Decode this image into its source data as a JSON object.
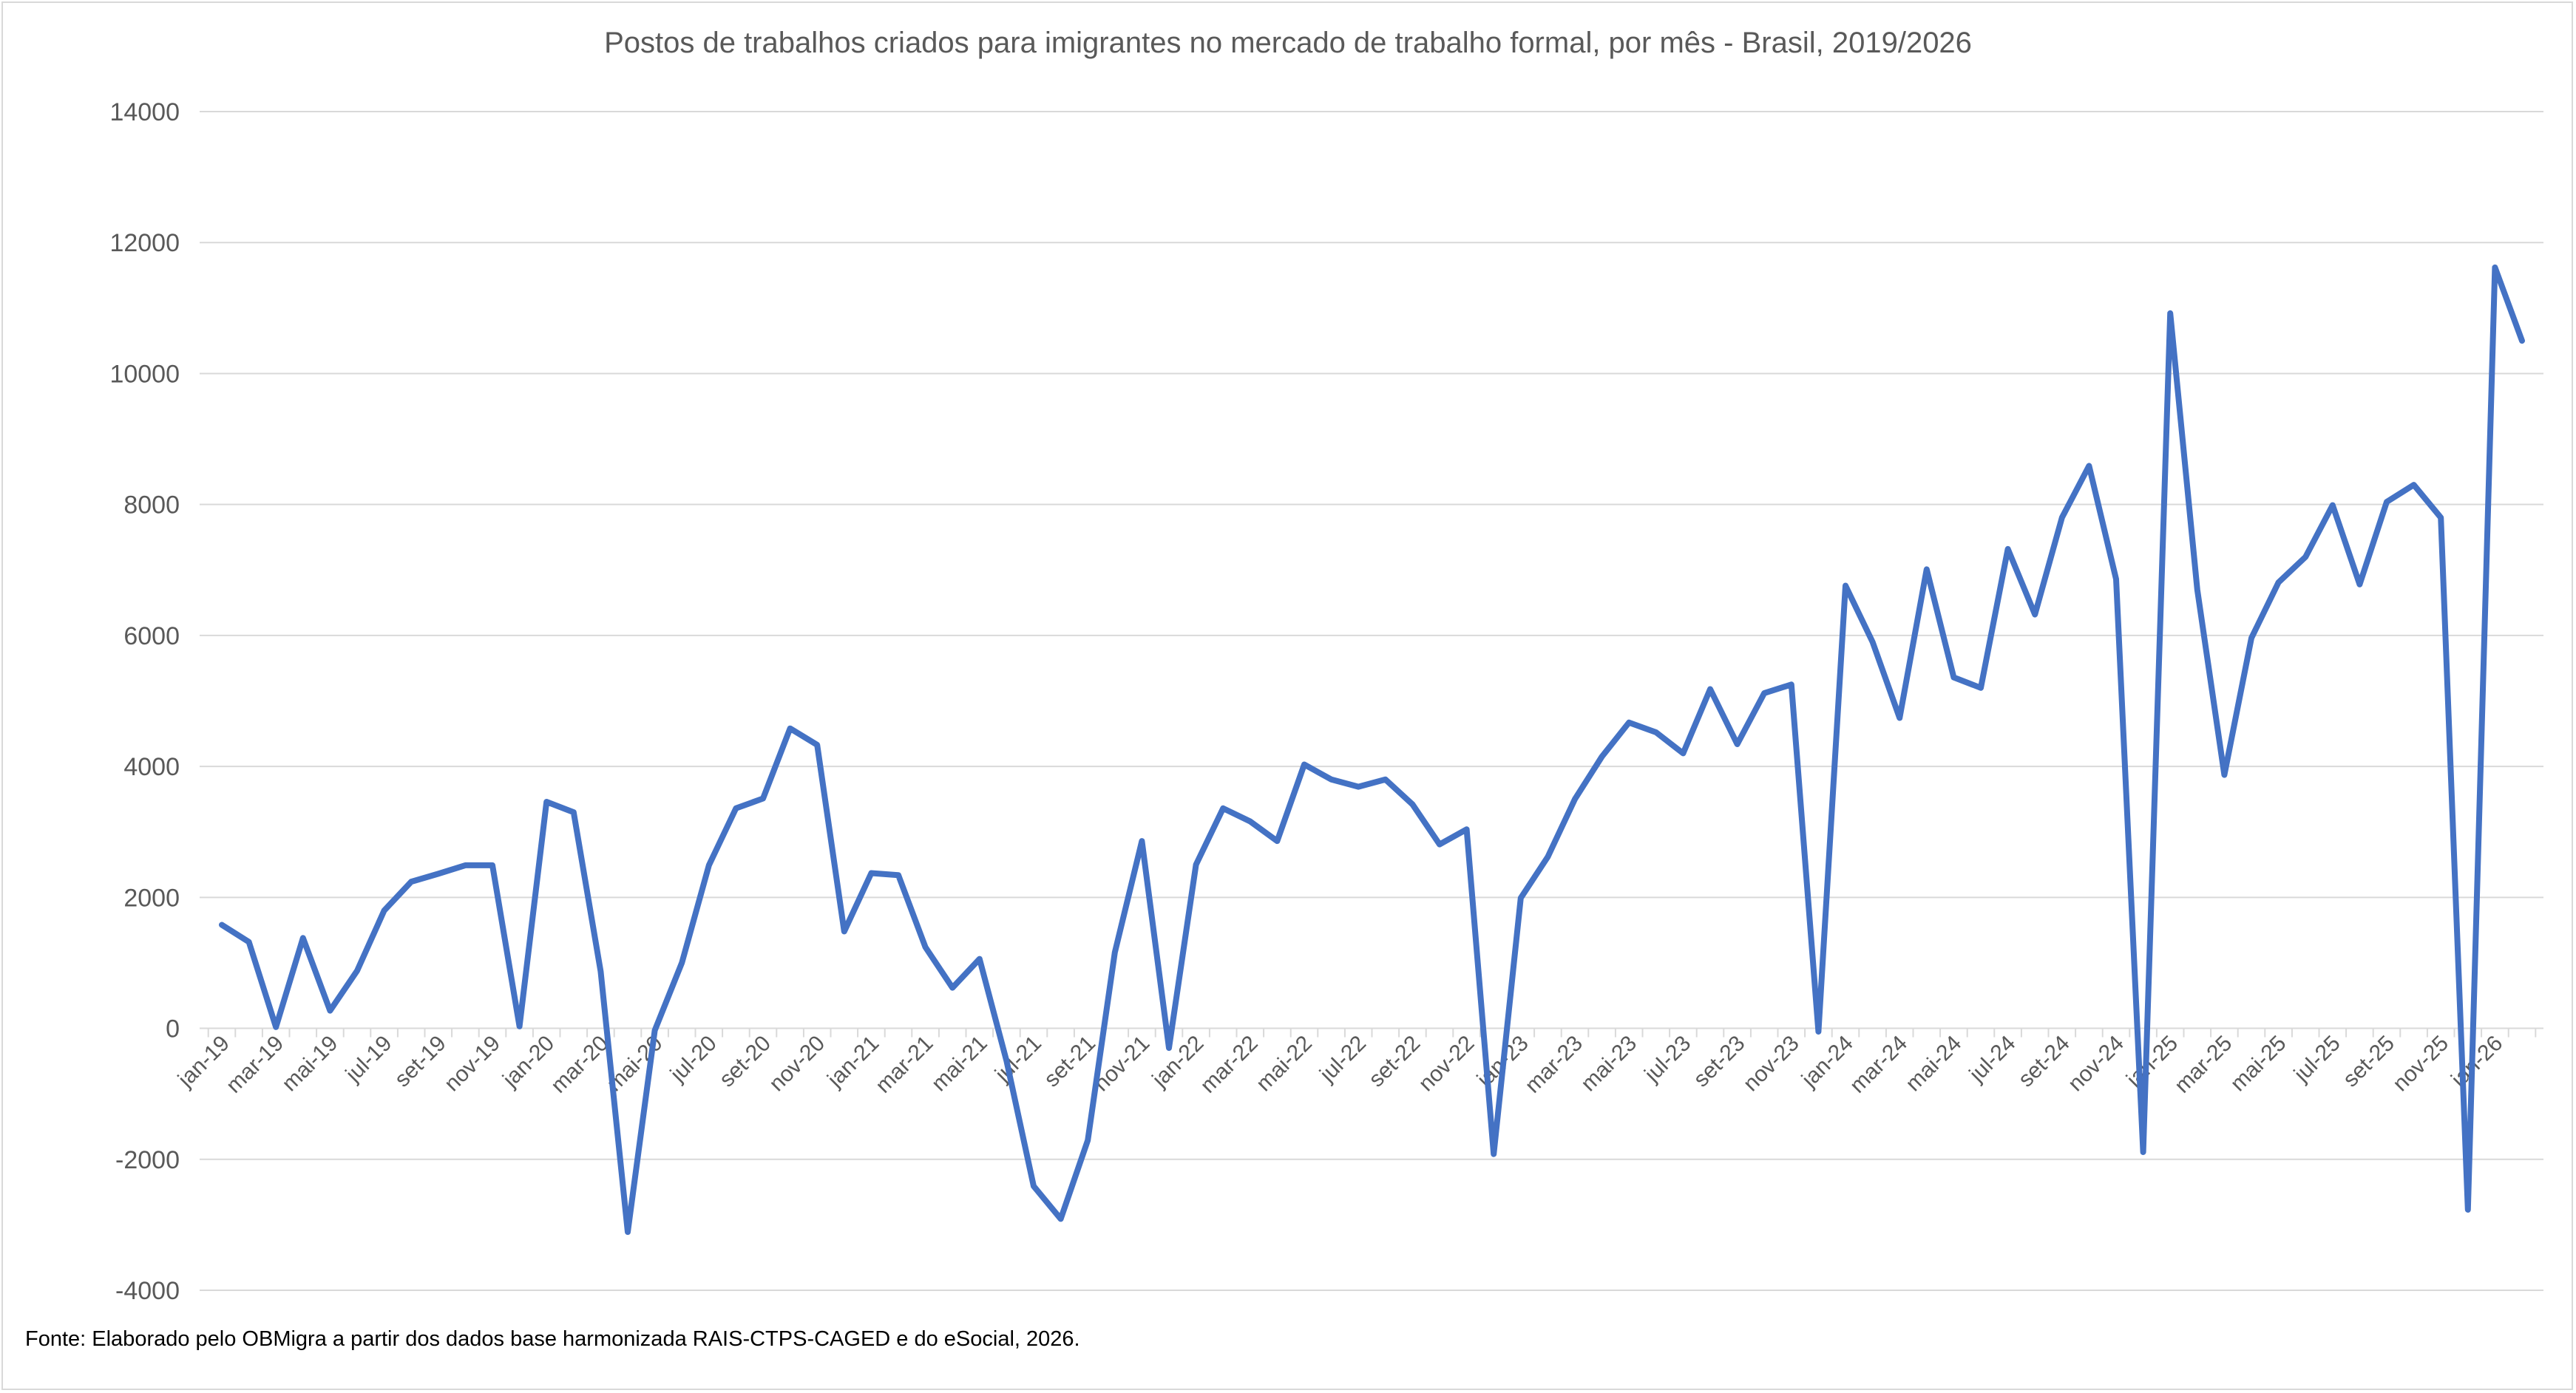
{
  "chart_data": {
    "type": "line",
    "title": "Postos de trabalhos criados para imigrantes no mercado de trabalho formal, por mês - Brasil, 2019/2026",
    "xlabel": "",
    "ylabel": "",
    "ylim": [
      -4000,
      14000
    ],
    "yticks": [
      -4000,
      -2000,
      0,
      2000,
      4000,
      6000,
      8000,
      10000,
      12000,
      14000
    ],
    "grid": true,
    "legend": "none",
    "line_color": "#4472c4",
    "categories": [
      "jan-19",
      "fev-19",
      "mar-19",
      "abr-19",
      "mai-19",
      "jun-19",
      "jul-19",
      "ago-19",
      "set-19",
      "out-19",
      "nov-19",
      "dez-19",
      "jan-20",
      "fev-20",
      "mar-20",
      "abr-20",
      "mai-20",
      "jun-20",
      "jul-20",
      "ago-20",
      "set-20",
      "out-20",
      "nov-20",
      "dez-20",
      "jan-21",
      "fev-21",
      "mar-21",
      "abr-21",
      "mai-21",
      "jun-21",
      "jul-21",
      "ago-21",
      "set-21",
      "out-21",
      "nov-21",
      "dez-21",
      "jan-22",
      "fev-22",
      "mar-22",
      "abr-22",
      "mai-22",
      "jun-22",
      "jul-22",
      "ago-22",
      "set-22",
      "out-22",
      "nov-22",
      "dez-22",
      "jan-23",
      "fev-23",
      "mar-23",
      "abr-23",
      "mai-23",
      "jun-23",
      "jul-23",
      "ago-23",
      "set-23",
      "out-23",
      "nov-23",
      "dez-23",
      "jan-24",
      "fev-24",
      "mar-24",
      "abr-24",
      "mai-24",
      "jun-24",
      "jul-24",
      "ago-24",
      "set-24",
      "out-24",
      "nov-24",
      "dez-24",
      "jan-25",
      "fev-25",
      "mar-25",
      "abr-25",
      "mai-25",
      "jun-25",
      "jul-25",
      "ago-25",
      "set-25",
      "out-25",
      "nov-25",
      "dez-25",
      "jan-26",
      "fev-26"
    ],
    "tick_labels": [
      "jan-19",
      "mar-19",
      "mai-19",
      "jul-19",
      "set-19",
      "nov-19",
      "jan-20",
      "mar-20",
      "mai-20",
      "jul-20",
      "set-20",
      "nov-20",
      "jan-21",
      "mar-21",
      "mai-21",
      "jul-21",
      "set-21",
      "nov-21",
      "jan-22",
      "mar-22",
      "mai-22",
      "jul-22",
      "set-22",
      "nov-22",
      "jan-23",
      "mar-23",
      "mai-23",
      "jul-23",
      "set-23",
      "nov-23",
      "jan-24",
      "mar-24",
      "mai-24",
      "jul-24",
      "set-24",
      "nov-24",
      "jan-25",
      "mar-25",
      "mai-25",
      "jul-25",
      "set-25",
      "nov-25",
      "jan-26"
    ],
    "series": [
      {
        "name": "Postos de trabalho",
        "values": [
          1580,
          1320,
          20,
          1380,
          270,
          880,
          1800,
          2240,
          2360,
          2490,
          2490,
          30,
          3460,
          3300,
          870,
          -3110,
          -30,
          1000,
          2490,
          3360,
          3510,
          4580,
          4330,
          1480,
          2370,
          2340,
          1240,
          620,
          1060,
          -500,
          -2410,
          -2910,
          -1710,
          1160,
          2860,
          -300,
          2500,
          3360,
          3160,
          2860,
          4030,
          3800,
          3690,
          3800,
          3420,
          2810,
          3040,
          -1920,
          1990,
          2620,
          3500,
          4150,
          4670,
          4520,
          4200,
          5180,
          4340,
          5120,
          5250,
          -50,
          6760,
          5900,
          4740,
          7010,
          5360,
          5200,
          7320,
          6320,
          7800,
          8590,
          6860,
          -1890,
          10920,
          6700,
          3870,
          5960,
          6810,
          7200,
          7990,
          6780,
          8040,
          8300,
          7800,
          -2770,
          11620,
          10500
        ]
      }
    ]
  },
  "footer": {
    "source": "Fonte: Elaborado pelo OBMigra a partir dos dados base harmonizada RAIS-CTPS-CAGED e do eSocial, 2026."
  }
}
